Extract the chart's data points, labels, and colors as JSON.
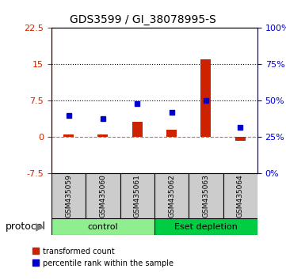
{
  "title": "GDS3599 / GI_38078995-S",
  "samples": [
    "GSM435059",
    "GSM435060",
    "GSM435061",
    "GSM435062",
    "GSM435063",
    "GSM435064"
  ],
  "red_values": [
    0.6,
    0.5,
    3.2,
    1.5,
    16.0,
    -0.8
  ],
  "blue_values": [
    4.0,
    3.8,
    4.8,
    4.2,
    8.5,
    3.2
  ],
  "left_ylim": [
    -7.5,
    22.5
  ],
  "right_ylim": [
    0,
    100
  ],
  "left_yticks": [
    -7.5,
    0,
    7.5,
    15,
    22.5
  ],
  "right_yticks": [
    0,
    25,
    50,
    75,
    100
  ],
  "left_ytick_labels": [
    "-7.5",
    "0",
    "7.5",
    "15",
    "22.5"
  ],
  "right_ytick_labels": [
    "0%",
    "25%",
    "50%",
    "75%",
    "100%"
  ],
  "hlines": [
    7.5,
    15
  ],
  "zero_line": 0,
  "protocol_groups": [
    {
      "label": "control",
      "samples": [
        0,
        1,
        2
      ],
      "color": "#90EE90"
    },
    {
      "label": "Eset depletion",
      "samples": [
        3,
        4,
        5
      ],
      "color": "#00CC44"
    }
  ],
  "red_color": "#CC2200",
  "blue_color": "#0000CC",
  "bar_width": 0.3,
  "bg_color": "#FFFFFF",
  "protocol_label": "protocol",
  "legend_red": "transformed count",
  "legend_blue": "percentile rank within the sample",
  "left_axis_color": "#CC2200",
  "right_axis_color": "#0000CC",
  "sample_box_color": "#CCCCCC"
}
